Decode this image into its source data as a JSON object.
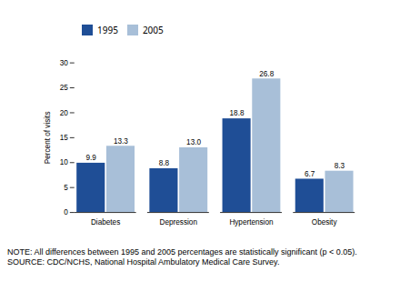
{
  "chart_data": {
    "type": "bar",
    "categories": [
      "Diabetes",
      "Depression",
      "Hypertension",
      "Obesity"
    ],
    "series": [
      {
        "name": "1995",
        "color": "#1F4E96",
        "values": [
          9.9,
          8.8,
          18.8,
          6.7
        ],
        "value_labels": [
          "9.9",
          "8.8",
          "18.8",
          "6.7"
        ]
      },
      {
        "name": "2005",
        "color": "#A8BFD8",
        "values": [
          13.3,
          13.0,
          26.8,
          8.3
        ],
        "value_labels": [
          "13.3",
          "13.0",
          "26.8",
          "8.3"
        ]
      }
    ],
    "ylabel": "Percent of visits",
    "ylim": [
      0,
      30
    ],
    "yticks": [
      0,
      5,
      10,
      15,
      20,
      25,
      30
    ],
    "grid": false,
    "legend": "upper left",
    "data_labels": true,
    "annotations": [
      "NOTE: All differences between 1995 and 2005 percentages are statistically significant (p < 0.05).",
      "SOURCE: CDC/NCHS, National Hospital Ambulatory Medical Care Survey."
    ]
  }
}
